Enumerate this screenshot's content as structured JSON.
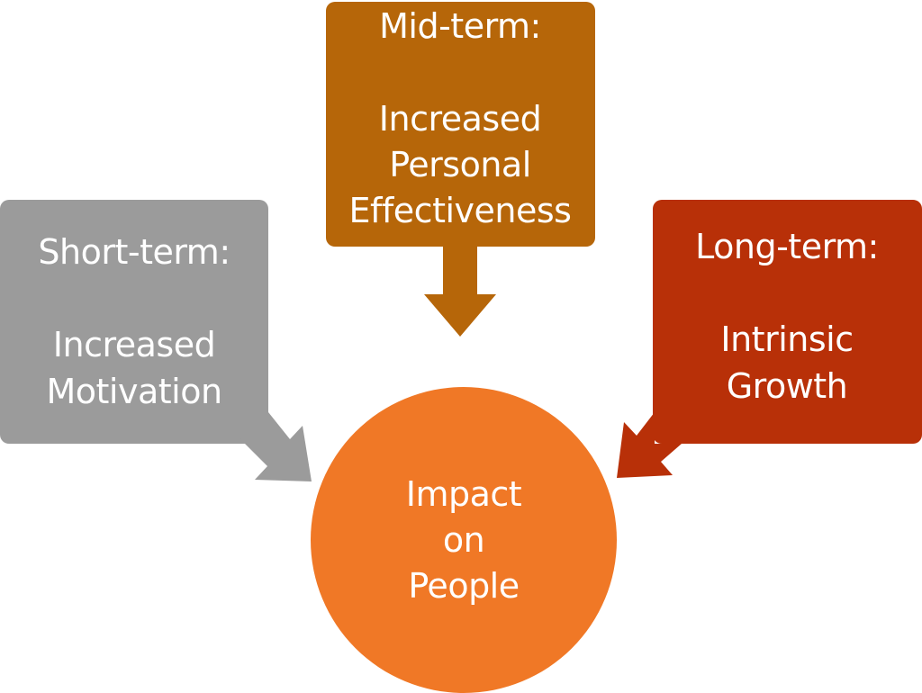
{
  "colors": {
    "short_term": "#9b9b9b",
    "mid_term": "#b66609",
    "long_term": "#b83008",
    "center": "#f07826",
    "text": "#ffffff"
  },
  "short_term": {
    "heading": "Short-term:",
    "lines": [
      "Increased",
      "Motivation"
    ]
  },
  "mid_term": {
    "heading": "Mid-term:",
    "lines": [
      "Increased",
      "Personal",
      "Effectiveness"
    ]
  },
  "long_term": {
    "heading": "Long-term:",
    "lines": [
      "Intrinsic",
      "Growth"
    ]
  },
  "center": {
    "lines": [
      "Impact",
      "on",
      "People"
    ]
  }
}
